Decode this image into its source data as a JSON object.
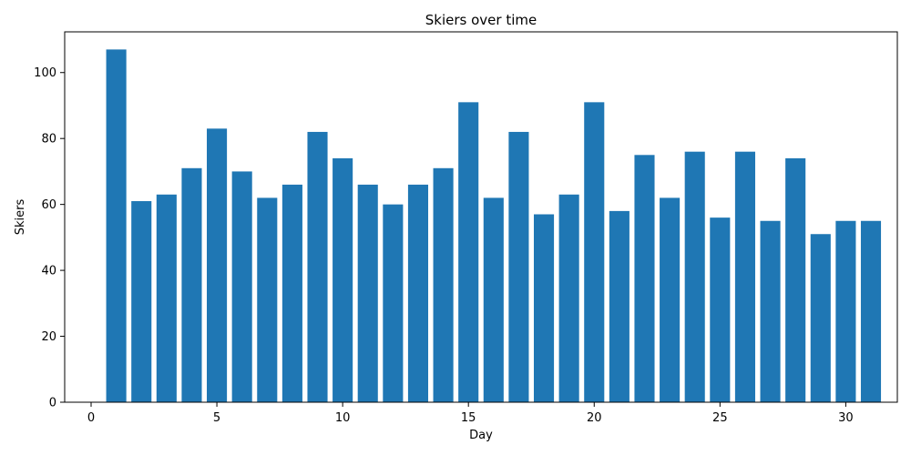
{
  "chart_data": {
    "type": "bar",
    "title": "Skiers over time",
    "xlabel": "Day",
    "ylabel": "Skiers",
    "x": [
      1,
      2,
      3,
      4,
      5,
      6,
      7,
      8,
      9,
      10,
      11,
      12,
      13,
      14,
      15,
      16,
      17,
      18,
      19,
      20,
      21,
      22,
      23,
      24,
      25,
      26,
      27,
      28,
      29,
      30,
      31
    ],
    "values": [
      107,
      61,
      63,
      71,
      83,
      70,
      62,
      66,
      82,
      74,
      66,
      60,
      66,
      71,
      91,
      62,
      82,
      57,
      63,
      91,
      58,
      75,
      62,
      76,
      56,
      76,
      55,
      74,
      51,
      55,
      55
    ],
    "xlim": [
      -1.05,
      32.05
    ],
    "ylim": [
      0,
      112.35
    ],
    "xticks": [
      0,
      5,
      10,
      15,
      20,
      25,
      30
    ],
    "yticks": [
      0,
      20,
      40,
      60,
      80,
      100
    ],
    "bar_color": "#1f77b4",
    "grid": false,
    "legend": "none"
  }
}
